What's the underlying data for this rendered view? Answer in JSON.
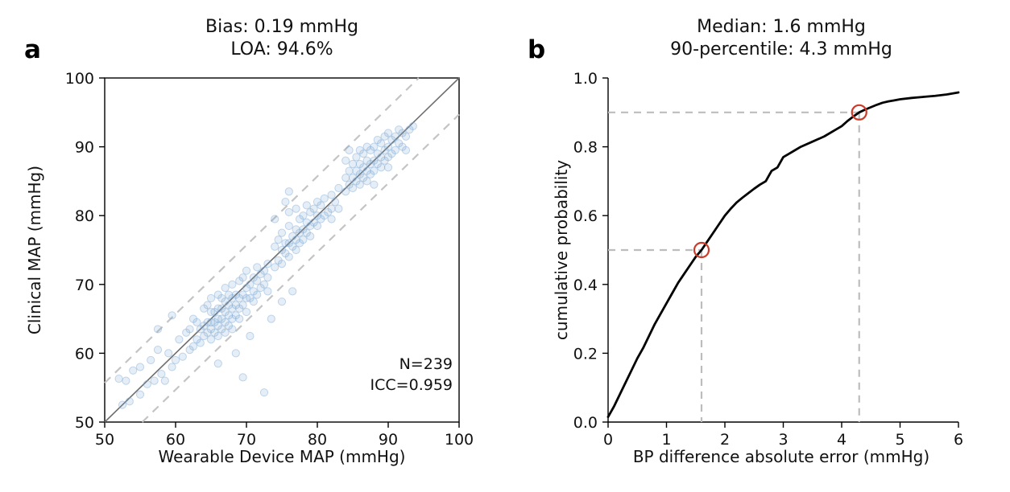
{
  "figure": {
    "background": "#ffffff"
  },
  "chart_data": [
    {
      "id": "panel_a",
      "type": "scatter",
      "panel_label": "a",
      "title": [
        "Bias: 0.19 mmHg",
        "LOA: 94.6%"
      ],
      "xlabel": "Wearable Device MAP (mmHg)",
      "ylabel": "Clinical MAP (mmHg)",
      "xlim": [
        50,
        100
      ],
      "ylim": [
        50,
        100
      ],
      "xticks": [
        50,
        60,
        70,
        80,
        90,
        100
      ],
      "xtick_labels": [
        "50",
        "60",
        "70",
        "80",
        "90",
        "100"
      ],
      "yticks": [
        50,
        60,
        70,
        80,
        90,
        100
      ],
      "ytick_labels": [
        "50",
        "60",
        "70",
        "80",
        "90",
        "100"
      ],
      "stats": {
        "bias_mmhg": 0.19,
        "loa_pct": 94.6,
        "n": 239,
        "icc": 0.959
      },
      "annotations": [
        "N=239",
        "ICC=0.959"
      ],
      "identity_line": {
        "from": [
          50,
          50
        ],
        "to": [
          100,
          100
        ],
        "color": "#6e6e6e"
      },
      "loa_lines": [
        {
          "from": [
            50,
            55.7
          ],
          "to": [
            94.3,
            100
          ],
          "color": "#c4c4c4"
        },
        {
          "from": [
            55.3,
            50
          ],
          "to": [
            100,
            94.7
          ],
          "color": "#c4c4c4"
        }
      ],
      "marker_color": "#7fa8d4",
      "points": [
        [
          52,
          56.3
        ],
        [
          52.5,
          52.5
        ],
        [
          53,
          56
        ],
        [
          53.5,
          53
        ],
        [
          54,
          57.5
        ],
        [
          55,
          54
        ],
        [
          55,
          58
        ],
        [
          56,
          55.5
        ],
        [
          56.5,
          59
        ],
        [
          57,
          56
        ],
        [
          57.5,
          60.5
        ],
        [
          57.5,
          63.5
        ],
        [
          58,
          57
        ],
        [
          58.5,
          56
        ],
        [
          59,
          60
        ],
        [
          59.5,
          58
        ],
        [
          59.5,
          65.5
        ],
        [
          60,
          59
        ],
        [
          60.5,
          62
        ],
        [
          61,
          59.5
        ],
        [
          61.5,
          63
        ],
        [
          62,
          60.5
        ],
        [
          62,
          63.5
        ],
        [
          62.5,
          61
        ],
        [
          62.5,
          65
        ],
        [
          63,
          62
        ],
        [
          63,
          64.5
        ],
        [
          63.5,
          61.5
        ],
        [
          63.5,
          63.5
        ],
        [
          64,
          62.5
        ],
        [
          64,
          64
        ],
        [
          64,
          66.5
        ],
        [
          64.5,
          63
        ],
        [
          64.5,
          64.5
        ],
        [
          64.5,
          67
        ],
        [
          65,
          62
        ],
        [
          65,
          63.5
        ],
        [
          65,
          64.5
        ],
        [
          65,
          66
        ],
        [
          65,
          68
        ],
        [
          65.5,
          63
        ],
        [
          65.5,
          64.5
        ],
        [
          65.5,
          66
        ],
        [
          66,
          62.5
        ],
        [
          66,
          64
        ],
        [
          66,
          65
        ],
        [
          66,
          66.5
        ],
        [
          66,
          68.5
        ],
        [
          66.5,
          63.5
        ],
        [
          66.5,
          65
        ],
        [
          66.5,
          66.5
        ],
        [
          66.5,
          68
        ],
        [
          67,
          63
        ],
        [
          67,
          64.5
        ],
        [
          67,
          66
        ],
        [
          67,
          67.5
        ],
        [
          67,
          69.5
        ],
        [
          67.5,
          64
        ],
        [
          67.5,
          65.5
        ],
        [
          67.5,
          67
        ],
        [
          67.5,
          68.5
        ],
        [
          68,
          63.5
        ],
        [
          68,
          65
        ],
        [
          68,
          66.5
        ],
        [
          68,
          68
        ],
        [
          68,
          70
        ],
        [
          68.5,
          65.5
        ],
        [
          68.5,
          67
        ],
        [
          68.5,
          68.5
        ],
        [
          69,
          65
        ],
        [
          69,
          66.5
        ],
        [
          69,
          68
        ],
        [
          69,
          70.5
        ],
        [
          69.5,
          67
        ],
        [
          69.5,
          68.5
        ],
        [
          69.5,
          71
        ],
        [
          70,
          66
        ],
        [
          70,
          68
        ],
        [
          70,
          69.5
        ],
        [
          70,
          72
        ],
        [
          70.5,
          68
        ],
        [
          70.5,
          70
        ],
        [
          71,
          67.5
        ],
        [
          71,
          69
        ],
        [
          71,
          71
        ],
        [
          71.5,
          68.5
        ],
        [
          71.5,
          70.5
        ],
        [
          71.5,
          72.5
        ],
        [
          72,
          69.5
        ],
        [
          72,
          71.5
        ],
        [
          72.5,
          70
        ],
        [
          72.5,
          72
        ],
        [
          73,
          69
        ],
        [
          73,
          71
        ],
        [
          73,
          73
        ],
        [
          66,
          58.5
        ],
        [
          68.5,
          60
        ],
        [
          70.5,
          62.5
        ],
        [
          72.5,
          54.3
        ],
        [
          73.5,
          65
        ],
        [
          75,
          67.5
        ],
        [
          76.5,
          69
        ],
        [
          69.5,
          56.5
        ],
        [
          74,
          72.5
        ],
        [
          74,
          75.5
        ],
        [
          74,
          79.5
        ],
        [
          74.5,
          73.5
        ],
        [
          74.5,
          76.5
        ],
        [
          75,
          73
        ],
        [
          75,
          75
        ],
        [
          75,
          77.5
        ],
        [
          75.5,
          74.5
        ],
        [
          75.5,
          76
        ],
        [
          75.5,
          82
        ],
        [
          76,
          74
        ],
        [
          76,
          76
        ],
        [
          76,
          78.5
        ],
        [
          76,
          80.5
        ],
        [
          76,
          83.5
        ],
        [
          76.5,
          75.5
        ],
        [
          76.5,
          77
        ],
        [
          77,
          75
        ],
        [
          77,
          76.5
        ],
        [
          77,
          78
        ],
        [
          77,
          81
        ],
        [
          77.5,
          76
        ],
        [
          77.5,
          77.5
        ],
        [
          77.5,
          79.5
        ],
        [
          78,
          76.5
        ],
        [
          78,
          78
        ],
        [
          78,
          80
        ],
        [
          78.5,
          77.5
        ],
        [
          78.5,
          79
        ],
        [
          78.5,
          81.5
        ],
        [
          79,
          77
        ],
        [
          79,
          78.5
        ],
        [
          79,
          80.5
        ],
        [
          79.5,
          79
        ],
        [
          79.5,
          81
        ],
        [
          80,
          78.5
        ],
        [
          80,
          80
        ],
        [
          80,
          82
        ],
        [
          80.5,
          79.5
        ],
        [
          80.5,
          81.5
        ],
        [
          81,
          80
        ],
        [
          81,
          82.5
        ],
        [
          81.5,
          80.5
        ],
        [
          82,
          79.5
        ],
        [
          82,
          81
        ],
        [
          82,
          83
        ],
        [
          82.5,
          82
        ],
        [
          83,
          81
        ],
        [
          83,
          84
        ],
        [
          84,
          83.5
        ],
        [
          84,
          85.5
        ],
        [
          84,
          88
        ],
        [
          84.5,
          84.5
        ],
        [
          84.5,
          86.5
        ],
        [
          84.5,
          89.5
        ],
        [
          85,
          84
        ],
        [
          85,
          85.5
        ],
        [
          85,
          87.5
        ],
        [
          85.5,
          85
        ],
        [
          85.5,
          86.5
        ],
        [
          85.5,
          88.5
        ],
        [
          86,
          84.5
        ],
        [
          86,
          86
        ],
        [
          86,
          87.5
        ],
        [
          86,
          89.5
        ],
        [
          86.5,
          85.5
        ],
        [
          86.5,
          87
        ],
        [
          86.5,
          89
        ],
        [
          87,
          85
        ],
        [
          87,
          86.5
        ],
        [
          87,
          88
        ],
        [
          87,
          90
        ],
        [
          87.5,
          86
        ],
        [
          87.5,
          87.5
        ],
        [
          87.5,
          89.5
        ],
        [
          88,
          84.5
        ],
        [
          88,
          86.5
        ],
        [
          88,
          88
        ],
        [
          88,
          90
        ],
        [
          88.5,
          87.5
        ],
        [
          88.5,
          89
        ],
        [
          88.5,
          91
        ],
        [
          89,
          87
        ],
        [
          89,
          88.5
        ],
        [
          89,
          90.5
        ],
        [
          89.5,
          88
        ],
        [
          89.5,
          89.5
        ],
        [
          89.5,
          91.5
        ],
        [
          90,
          87
        ],
        [
          90,
          88.5
        ],
        [
          90,
          90
        ],
        [
          90,
          92
        ],
        [
          90.5,
          89
        ],
        [
          90.5,
          91
        ],
        [
          91,
          89.5
        ],
        [
          91,
          91.5
        ],
        [
          91.5,
          90.5
        ],
        [
          91.5,
          92.5
        ],
        [
          92,
          90
        ],
        [
          92,
          92
        ],
        [
          92.5,
          89.5
        ],
        [
          92.5,
          91.5
        ],
        [
          93,
          92.5
        ],
        [
          93.5,
          93
        ]
      ]
    },
    {
      "id": "panel_b",
      "type": "line",
      "panel_label": "b",
      "title": [
        "Median: 1.6 mmHg",
        "90-percentile: 4.3 mmHg"
      ],
      "xlabel": "BP difference absolute error (mmHg)",
      "ylabel": "cumulative probability",
      "xlim": [
        0,
        6
      ],
      "ylim": [
        0.0,
        1.0
      ],
      "xticks": [
        0,
        1,
        2,
        3,
        4,
        5,
        6
      ],
      "xtick_labels": [
        "0",
        "1",
        "2",
        "3",
        "4",
        "5",
        "6"
      ],
      "yticks": [
        0.0,
        0.2,
        0.4,
        0.6,
        0.8,
        1.0
      ],
      "ytick_labels": [
        "0.0",
        "0.2",
        "0.4",
        "0.6",
        "0.8",
        "1.0"
      ],
      "line_color": "#000000",
      "guide_color": "#bdbdbd",
      "highlight_markers": [
        {
          "x": 1.6,
          "y": 0.5,
          "label": "median",
          "color": "#cc3b2a"
        },
        {
          "x": 4.3,
          "y": 0.9,
          "label": "90th-percentile",
          "color": "#cc3b2a"
        }
      ],
      "cdf": [
        [
          0,
          0.015
        ],
        [
          0.1,
          0.045
        ],
        [
          0.2,
          0.08
        ],
        [
          0.3,
          0.115
        ],
        [
          0.4,
          0.15
        ],
        [
          0.5,
          0.185
        ],
        [
          0.6,
          0.215
        ],
        [
          0.7,
          0.25
        ],
        [
          0.8,
          0.285
        ],
        [
          0.9,
          0.315
        ],
        [
          1.0,
          0.345
        ],
        [
          1.1,
          0.375
        ],
        [
          1.2,
          0.405
        ],
        [
          1.3,
          0.43
        ],
        [
          1.4,
          0.455
        ],
        [
          1.5,
          0.48
        ],
        [
          1.6,
          0.5
        ],
        [
          1.7,
          0.525
        ],
        [
          1.8,
          0.55
        ],
        [
          1.9,
          0.575
        ],
        [
          2.0,
          0.6
        ],
        [
          2.1,
          0.62
        ],
        [
          2.2,
          0.638
        ],
        [
          2.3,
          0.652
        ],
        [
          2.4,
          0.665
        ],
        [
          2.5,
          0.678
        ],
        [
          2.6,
          0.69
        ],
        [
          2.7,
          0.7
        ],
        [
          2.75,
          0.715
        ],
        [
          2.8,
          0.73
        ],
        [
          2.9,
          0.74
        ],
        [
          3.0,
          0.77
        ],
        [
          3.1,
          0.78
        ],
        [
          3.2,
          0.79
        ],
        [
          3.3,
          0.8
        ],
        [
          3.5,
          0.815
        ],
        [
          3.7,
          0.83
        ],
        [
          3.9,
          0.85
        ],
        [
          4.0,
          0.86
        ],
        [
          4.1,
          0.875
        ],
        [
          4.2,
          0.888
        ],
        [
          4.3,
          0.9
        ],
        [
          4.4,
          0.908
        ],
        [
          4.5,
          0.915
        ],
        [
          4.6,
          0.922
        ],
        [
          4.7,
          0.928
        ],
        [
          4.8,
          0.932
        ],
        [
          4.9,
          0.935
        ],
        [
          5.0,
          0.938
        ],
        [
          5.2,
          0.942
        ],
        [
          5.4,
          0.945
        ],
        [
          5.6,
          0.948
        ],
        [
          5.8,
          0.952
        ],
        [
          6.0,
          0.958
        ]
      ]
    }
  ]
}
